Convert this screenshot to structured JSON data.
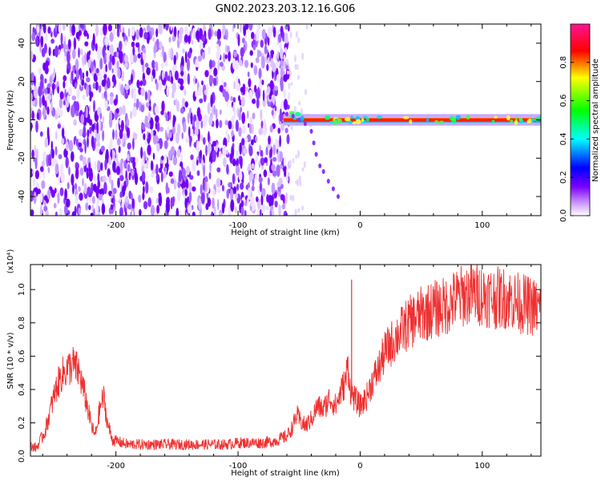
{
  "title": "GN02.2023.203.12.16.G06",
  "chart_data": [
    {
      "type": "heatmap",
      "xlabel": "Height of straight line (km)",
      "ylabel": "Frequency (Hz)",
      "xlim": [
        -270,
        148
      ],
      "ylim": [
        -50,
        50
      ],
      "xticks": [
        -200,
        -100,
        0,
        100
      ],
      "yticks": [
        -40,
        -20,
        0,
        20,
        40
      ],
      "colorbar": {
        "label": "Normalized spectral amplitude",
        "range": [
          0,
          1
        ],
        "ticks": [
          0.0,
          0.2,
          0.4,
          0.6,
          0.8
        ],
        "colors": [
          "#ffffff",
          "#7a00ff",
          "#0000ff",
          "#00ffff",
          "#00ff00",
          "#ffff00",
          "#ff0000",
          "#ff1493"
        ]
      },
      "features": {
        "noise_region_x": [
          -270,
          -62
        ],
        "line_start_x": -63,
        "line_frequency_hz": 0,
        "tail_points": [
          [
            -60,
            3
          ],
          [
            -55,
            2
          ],
          [
            -50,
            0
          ],
          [
            -45,
            -2
          ],
          [
            -40,
            -6
          ],
          [
            -38,
            -12
          ],
          [
            -36,
            -18
          ],
          [
            -33,
            -24
          ],
          [
            -30,
            -27
          ],
          [
            -26,
            -32
          ],
          [
            -22,
            -36
          ],
          [
            -18,
            -40
          ]
        ]
      },
      "grid": false
    },
    {
      "type": "line",
      "xlabel": "Height of straight line (km)",
      "ylabel": "SNR (10 * v/v)",
      "exponent_label": "(x10⁴)",
      "xlim": [
        -270,
        148
      ],
      "ylim": [
        0,
        1.15
      ],
      "xticks": [
        -200,
        -100,
        0,
        100
      ],
      "yticks": [
        0.0,
        0.2,
        0.4,
        0.6,
        0.8,
        1.0
      ],
      "series_color": "#ee3030",
      "grid": false,
      "series": [
        {
          "x": [
            -270,
            -265,
            -258,
            -250,
            -245,
            -240,
            -235,
            -230,
            -225,
            -220,
            -217,
            -214,
            -212,
            -210,
            -207,
            -203,
            -200,
            -195,
            -190,
            -180,
            -170,
            -160,
            -150,
            -140,
            -130,
            -120,
            -110,
            -100,
            -90,
            -80,
            -70,
            -60,
            -55,
            -52,
            -50,
            -45,
            -40,
            -35,
            -30,
            -25,
            -20,
            -15,
            -12,
            -10,
            -8,
            -5,
            0,
            5,
            10,
            15,
            20,
            30,
            40,
            50,
            60,
            70,
            80,
            90,
            100,
            110,
            120,
            130,
            140,
            148
          ],
          "y": [
            0.06,
            0.05,
            0.15,
            0.38,
            0.48,
            0.52,
            0.55,
            0.5,
            0.35,
            0.18,
            0.12,
            0.25,
            0.32,
            0.35,
            0.2,
            0.1,
            0.09,
            0.08,
            0.07,
            0.07,
            0.07,
            0.07,
            0.07,
            0.07,
            0.07,
            0.07,
            0.07,
            0.08,
            0.08,
            0.08,
            0.09,
            0.12,
            0.18,
            0.25,
            0.22,
            0.18,
            0.22,
            0.3,
            0.28,
            0.35,
            0.3,
            0.4,
            0.45,
            0.55,
            0.4,
            0.35,
            0.3,
            0.35,
            0.45,
            0.52,
            0.62,
            0.72,
            0.8,
            0.85,
            0.88,
            0.9,
            0.95,
            0.98,
            0.97,
            0.95,
            0.95,
            0.92,
            0.9,
            0.88
          ]
        }
      ]
    }
  ]
}
